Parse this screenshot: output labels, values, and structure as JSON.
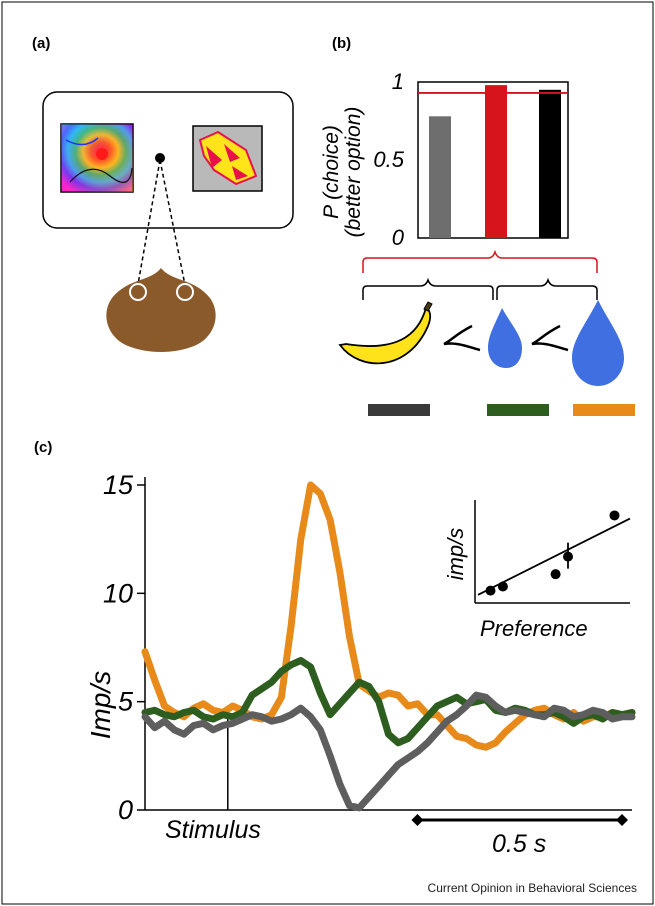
{
  "figure": {
    "credit": "Current Opinion in Behavioral Sciences",
    "panel_labels": [
      "(a)",
      "(b)",
      "(c)"
    ]
  },
  "chart_data": [
    {
      "panel": "(a)",
      "type": "other",
      "description_text": []
    },
    {
      "panel": "(b)",
      "type": "bar",
      "ylabel_line1": "P (choice)",
      "ylabel_line2": "(better option)",
      "ylim": [
        0,
        1
      ],
      "yticks": [
        "0",
        "0.5",
        "1"
      ],
      "values": [
        0.78,
        0.98,
        0.95
      ],
      "colors": [
        "#6e6e6e",
        "#d6141c",
        "#000000"
      ],
      "reference_value": 0.93,
      "reference_color": "#d6141c",
      "legend_swatches": [
        "#3a3a3a",
        "#2e5e1f",
        "#e88a1a"
      ]
    },
    {
      "panel": "(c)",
      "type": "line",
      "ylabel": "Imp/s",
      "ylim": [
        0,
        15
      ],
      "yticks": [
        "0",
        "5",
        "10",
        "15"
      ],
      "xlim": [
        0,
        1.0
      ],
      "stimulus_label": "Stimulus",
      "stimulus_time": 0.17,
      "scale_bar_label": "0.5 s",
      "scale_bar": [
        0.58,
        1.0
      ],
      "series": [
        {
          "color": "#e88a1a",
          "x": [
            0.0,
            0.02,
            0.04,
            0.06,
            0.08,
            0.1,
            0.12,
            0.14,
            0.16,
            0.18,
            0.2,
            0.22,
            0.24,
            0.26,
            0.28,
            0.3,
            0.32,
            0.34,
            0.36,
            0.38,
            0.4,
            0.42,
            0.44,
            0.46,
            0.48,
            0.5,
            0.52,
            0.54,
            0.56,
            0.58,
            0.6,
            0.62,
            0.64,
            0.66,
            0.68,
            0.7,
            0.72,
            0.74,
            0.76,
            0.78,
            0.8,
            0.82,
            0.84,
            0.86,
            0.88,
            0.9,
            0.92,
            0.94,
            0.96,
            0.98,
            1.0
          ],
          "y": [
            7.3,
            6.0,
            4.8,
            4.5,
            4.3,
            4.7,
            4.9,
            4.6,
            4.5,
            4.8,
            4.6,
            4.3,
            4.2,
            4.4,
            5.2,
            8.5,
            12.5,
            15.0,
            14.6,
            13.4,
            11.0,
            8.0,
            5.8,
            5.5,
            5.2,
            5.4,
            5.3,
            4.8,
            4.9,
            4.4,
            4.4,
            3.9,
            3.4,
            3.3,
            3.0,
            2.9,
            3.1,
            3.6,
            4.0,
            4.4,
            4.6,
            4.7,
            4.4,
            4.2,
            4.5,
            4.1,
            4.3,
            4.3,
            4.5,
            4.4,
            4.5
          ]
        },
        {
          "color": "#2e5e1f",
          "x": [
            0.0,
            0.02,
            0.04,
            0.06,
            0.08,
            0.1,
            0.12,
            0.14,
            0.16,
            0.18,
            0.2,
            0.22,
            0.24,
            0.26,
            0.28,
            0.3,
            0.32,
            0.34,
            0.36,
            0.38,
            0.4,
            0.42,
            0.44,
            0.46,
            0.48,
            0.5,
            0.52,
            0.54,
            0.56,
            0.58,
            0.6,
            0.62,
            0.64,
            0.66,
            0.68,
            0.7,
            0.72,
            0.74,
            0.76,
            0.78,
            0.8,
            0.82,
            0.84,
            0.86,
            0.88,
            0.9,
            0.92,
            0.94,
            0.96,
            0.98,
            1.0
          ],
          "y": [
            4.5,
            4.6,
            4.4,
            4.3,
            4.5,
            4.6,
            4.3,
            4.2,
            4.4,
            4.3,
            4.5,
            5.3,
            5.6,
            5.9,
            6.4,
            6.7,
            6.9,
            6.6,
            5.4,
            4.4,
            4.9,
            5.4,
            5.9,
            5.7,
            5.0,
            3.5,
            3.1,
            3.3,
            3.8,
            4.3,
            4.8,
            5.0,
            5.2,
            4.9,
            5.0,
            5.1,
            4.6,
            4.5,
            4.7,
            4.6,
            4.4,
            4.4,
            4.5,
            4.3,
            4.0,
            4.3,
            4.4,
            4.2,
            4.5,
            4.4,
            4.5
          ]
        },
        {
          "color": "#5e5e5e",
          "x": [
            0.0,
            0.02,
            0.04,
            0.06,
            0.08,
            0.1,
            0.12,
            0.14,
            0.16,
            0.18,
            0.2,
            0.22,
            0.24,
            0.26,
            0.28,
            0.3,
            0.32,
            0.34,
            0.36,
            0.38,
            0.4,
            0.42,
            0.44,
            0.46,
            0.48,
            0.5,
            0.52,
            0.54,
            0.56,
            0.58,
            0.6,
            0.62,
            0.64,
            0.66,
            0.68,
            0.7,
            0.72,
            0.74,
            0.76,
            0.78,
            0.8,
            0.82,
            0.84,
            0.86,
            0.88,
            0.9,
            0.92,
            0.94,
            0.96,
            0.98,
            1.0
          ],
          "y": [
            4.3,
            3.8,
            4.1,
            3.7,
            3.5,
            3.9,
            4.0,
            3.7,
            3.9,
            4.0,
            4.2,
            4.4,
            4.3,
            4.1,
            4.2,
            4.4,
            4.7,
            4.3,
            3.7,
            2.5,
            1.2,
            0.2,
            0.1,
            0.6,
            1.1,
            1.6,
            2.1,
            2.4,
            2.7,
            3.1,
            3.6,
            4.1,
            4.4,
            4.8,
            5.3,
            5.2,
            4.8,
            4.5,
            4.6,
            4.5,
            4.4,
            4.3,
            4.7,
            4.6,
            4.3,
            4.4,
            4.6,
            4.5,
            4.2,
            4.3,
            4.3
          ]
        }
      ],
      "inset": {
        "type": "scatter",
        "xlabel": "Preference",
        "ylabel": "imp/s",
        "x": [
          0.1,
          0.18,
          0.52,
          0.6,
          0.9
        ],
        "y": [
          0.12,
          0.16,
          0.28,
          0.45,
          0.85
        ],
        "error_bar_index": 3,
        "fit": [
          [
            0.02,
            0.08
          ],
          [
            1.0,
            0.82
          ]
        ]
      }
    }
  ]
}
